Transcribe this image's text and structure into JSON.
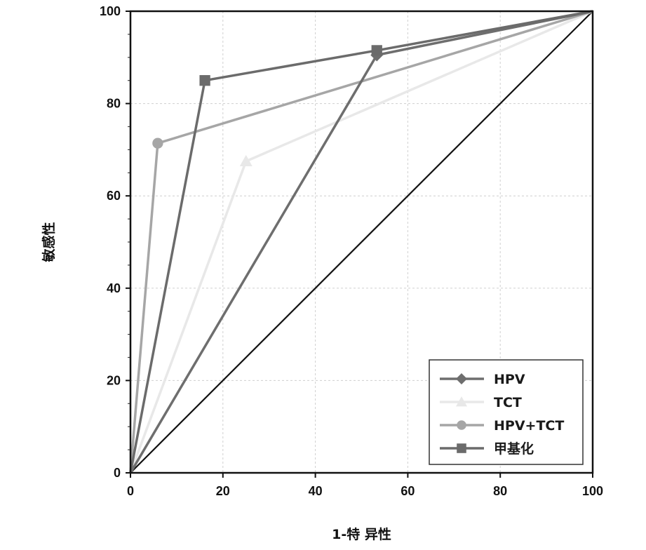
{
  "chart_data": {
    "type": "line",
    "title": "",
    "xlabel": "1-特 异性",
    "ylabel": "敏感性",
    "xlim": [
      0,
      100
    ],
    "ylim": [
      0,
      100
    ],
    "x_ticks": [
      "0",
      "20",
      "40",
      "60",
      "80",
      "100"
    ],
    "y_ticks": [
      "0",
      "20",
      "40",
      "60",
      "80",
      "100"
    ],
    "grid": true,
    "legend_position": "bottom-right",
    "reference_line": {
      "x": [
        0,
        100
      ],
      "y": [
        0,
        100
      ],
      "color": "#111111"
    },
    "series": [
      {
        "name": "HPV",
        "marker": "diamond",
        "color": "#6e6e6e",
        "x": [
          0,
          53.3,
          100
        ],
        "y": [
          0,
          90.5,
          100
        ]
      },
      {
        "name": "TCT",
        "marker": "triangle",
        "color": "#e8e8e8",
        "x": [
          0,
          25,
          100
        ],
        "y": [
          0,
          67.5,
          100
        ]
      },
      {
        "name": "HPV+TCT",
        "marker": "circle",
        "color": "#a6a6a6",
        "x": [
          0,
          5.9,
          100
        ],
        "y": [
          0,
          71.4,
          100
        ]
      },
      {
        "name": "甲基化",
        "marker": "square",
        "color": "#6b6b6b",
        "x": [
          0,
          16.1,
          53.3,
          100
        ],
        "y": [
          0,
          85,
          91.5,
          100
        ]
      }
    ]
  }
}
